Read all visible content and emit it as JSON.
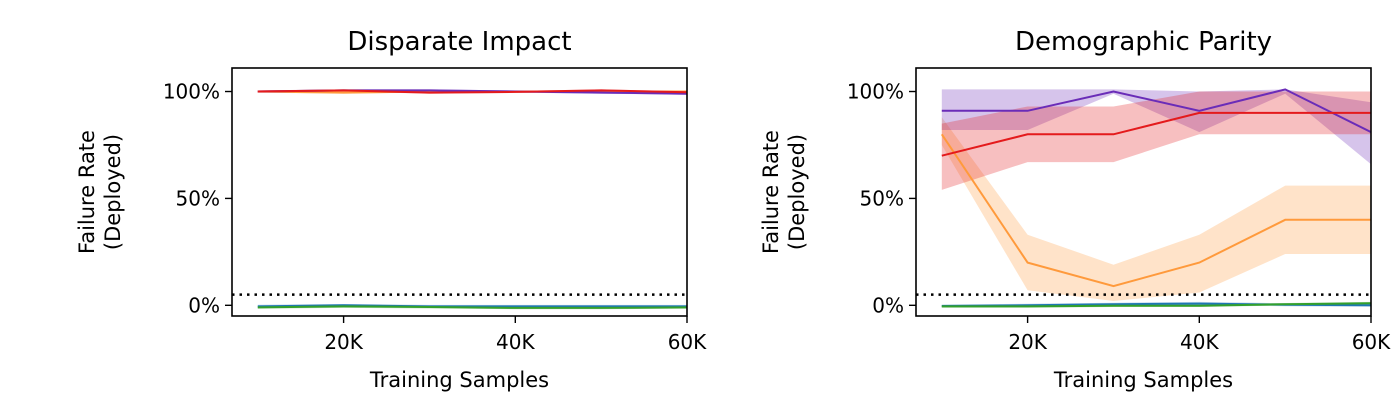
{
  "chart_data": [
    {
      "type": "line",
      "title": "Disparate Impact",
      "xlabel": "Training Samples",
      "ylabel_lines": [
        "Failure Rate",
        "(Deployed)"
      ],
      "xlim": [
        7000,
        60000
      ],
      "ylim": [
        -0.05,
        1.11
      ],
      "xticks": [
        20000,
        40000,
        60000
      ],
      "xtick_labels": [
        "20K",
        "40K",
        "60K"
      ],
      "yticks": [
        0,
        0.5,
        1.0
      ],
      "ytick_labels": [
        "0%",
        "50%",
        "100%"
      ],
      "threshold": 0.05,
      "grid": false,
      "x": [
        10000,
        20000,
        30000,
        40000,
        50000,
        60000
      ],
      "series": [
        {
          "color": "#ff9a3c",
          "values": [
            1.0,
            0.995,
            1.0,
            1.0,
            1.0,
            1.0
          ],
          "band_lower": [
            0.995,
            0.99,
            0.995,
            0.995,
            0.995,
            0.995
          ],
          "band_upper": [
            1.0,
            1.0,
            1.0,
            1.0,
            1.0,
            1.0
          ]
        },
        {
          "color": "#6a2cb8",
          "values": [
            1.0,
            1.005,
            1.005,
            1.0,
            0.995,
            0.99
          ],
          "band_lower": [
            0.995,
            1.0,
            1.0,
            0.995,
            0.99,
            0.985
          ],
          "band_upper": [
            1.005,
            1.01,
            1.01,
            1.005,
            1.0,
            0.995
          ]
        },
        {
          "color": "#e41a1c",
          "values": [
            1.0,
            1.005,
            0.995,
            0.998,
            1.005,
            0.997
          ],
          "band_lower": [
            0.995,
            1.0,
            0.99,
            0.993,
            1.0,
            0.992
          ],
          "band_upper": [
            1.005,
            1.01,
            1.0,
            1.003,
            1.01,
            1.002
          ]
        },
        {
          "color": "#1f77b4",
          "values": [
            -0.005,
            0.0,
            -0.005,
            -0.005,
            -0.005,
            -0.005
          ],
          "band_lower": [
            -0.012,
            -0.008,
            -0.012,
            -0.013,
            -0.012,
            -0.012
          ],
          "band_upper": [
            0.003,
            0.006,
            0.002,
            0.002,
            0.002,
            0.002
          ]
        },
        {
          "color": "#33a02c",
          "values": [
            -0.01,
            -0.005,
            -0.008,
            -0.012,
            -0.012,
            -0.01
          ],
          "band_lower": [
            -0.016,
            -0.012,
            -0.015,
            -0.018,
            -0.018,
            -0.016
          ],
          "band_upper": [
            -0.003,
            0.002,
            -0.002,
            -0.006,
            -0.006,
            -0.004
          ]
        }
      ]
    },
    {
      "type": "line",
      "title": "Demographic Parity",
      "xlabel": "Training Samples",
      "ylabel_lines": [
        "Failure Rate",
        "(Deployed)"
      ],
      "xlim": [
        7000,
        60000
      ],
      "ylim": [
        -0.05,
        1.11
      ],
      "xticks": [
        20000,
        40000,
        60000
      ],
      "xtick_labels": [
        "20K",
        "40K",
        "60K"
      ],
      "yticks": [
        0,
        0.5,
        1.0
      ],
      "ytick_labels": [
        "0%",
        "50%",
        "100%"
      ],
      "threshold": 0.05,
      "grid": false,
      "x": [
        10000,
        20000,
        30000,
        40000,
        50000,
        60000
      ],
      "series": [
        {
          "color": "#ff9a3c",
          "values": [
            0.8,
            0.2,
            0.09,
            0.2,
            0.4,
            0.4
          ],
          "band_lower": [
            0.75,
            0.07,
            0.02,
            0.06,
            0.24,
            0.24
          ],
          "band_upper": [
            0.88,
            0.33,
            0.19,
            0.33,
            0.56,
            0.56
          ]
        },
        {
          "color": "#6a2cb8",
          "values": [
            0.91,
            0.91,
            1.0,
            0.91,
            1.01,
            0.81
          ],
          "band_lower": [
            0.82,
            0.82,
            0.99,
            0.81,
            0.99,
            0.66
          ],
          "band_upper": [
            1.01,
            1.01,
            1.01,
            1.0,
            1.01,
            0.95
          ]
        },
        {
          "color": "#e41a1c",
          "values": [
            0.7,
            0.8,
            0.8,
            0.9,
            0.9,
            0.9
          ],
          "band_lower": [
            0.54,
            0.67,
            0.67,
            0.8,
            0.8,
            0.8
          ],
          "band_upper": [
            0.85,
            0.93,
            0.93,
            1.0,
            1.0,
            1.0
          ]
        },
        {
          "color": "#1f77b4",
          "values": [
            -0.003,
            0.0,
            0.005,
            0.008,
            0.003,
            0.0
          ],
          "band_lower": [
            -0.01,
            -0.007,
            -0.002,
            0.0,
            -0.004,
            -0.007
          ],
          "band_upper": [
            0.004,
            0.007,
            0.012,
            0.016,
            0.01,
            0.007
          ]
        },
        {
          "color": "#33a02c",
          "values": [
            -0.005,
            -0.005,
            -0.002,
            -0.002,
            0.005,
            0.01
          ],
          "band_lower": [
            -0.011,
            -0.011,
            -0.008,
            -0.008,
            -0.001,
            0.004
          ],
          "band_upper": [
            0.001,
            0.001,
            0.004,
            0.004,
            0.011,
            0.016
          ]
        }
      ]
    }
  ]
}
